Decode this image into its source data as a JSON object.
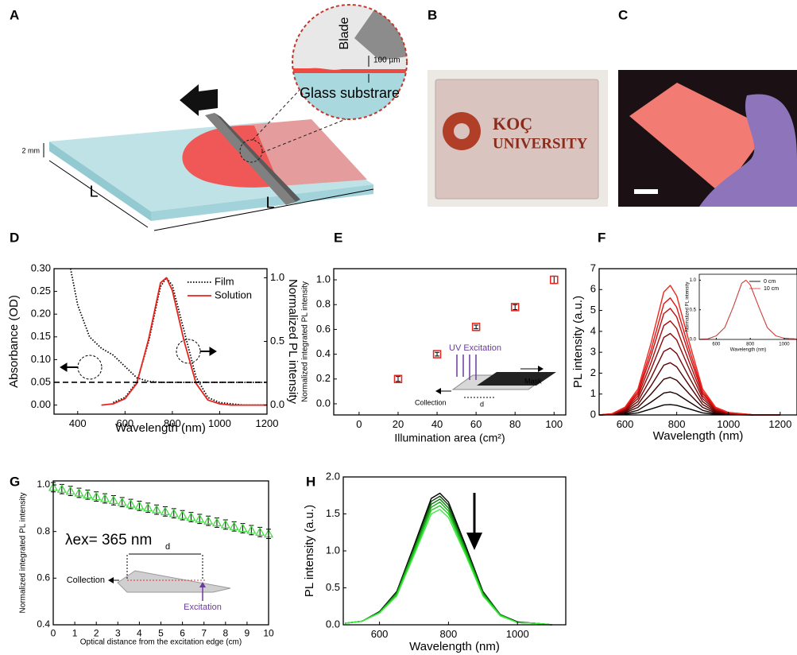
{
  "panel_labels": [
    "A",
    "B",
    "C",
    "D",
    "E",
    "F",
    "G",
    "H"
  ],
  "panel_a": {
    "blade": "Blade",
    "gap": "100 µm",
    "substrate": "Glass substrare",
    "thickness": "2 mm",
    "length_1": "L",
    "length_2": "L"
  },
  "panel_b": {
    "logo_line_1": "KOÇ",
    "logo_line_2": "UNIVERSITY"
  },
  "chart_data": [
    {
      "type": "line",
      "x": [
        370,
        400,
        450,
        500,
        550,
        600,
        650,
        700,
        750,
        775,
        800,
        850,
        900,
        950,
        1000,
        1050,
        1100,
        1150,
        1200
      ],
      "series": [
        {
          "name": "Film",
          "color": "#000000",
          "dash": "dotted",
          "axis": "y2",
          "values": [
            null,
            null,
            null,
            null,
            0.02,
            0.06,
            0.18,
            0.5,
            0.93,
            1.0,
            0.94,
            0.58,
            0.22,
            0.06,
            0.02,
            0.01,
            0,
            0,
            0
          ]
        },
        {
          "name": "Solution",
          "color": "#e8231c",
          "dash": "solid",
          "axis": "y2",
          "values": [
            null,
            null,
            null,
            0,
            0.01,
            0.05,
            0.17,
            0.52,
            0.96,
            1.0,
            0.9,
            0.5,
            0.17,
            0.04,
            0.01,
            0,
            0,
            0,
            0
          ]
        },
        {
          "color": "#000000",
          "dash": "dotted",
          "values": [
            0.3,
            0.22,
            0.15,
            0.125,
            0.11,
            0.085,
            0.06,
            0.052,
            0.05,
            0.05,
            0.05,
            0.05,
            0.05,
            0.05,
            0.05,
            0.05,
            0.05,
            0.05,
            0.05
          ]
        }
      ],
      "hline": 0.05,
      "xlim": [
        300,
        1200
      ],
      "ylim": [
        -0.02,
        0.3
      ],
      "y2lim": [
        -0.0714,
        1.0714
      ],
      "xticks": [
        400,
        600,
        800,
        1000,
        1200
      ],
      "yticks": [
        {
          "value": 0,
          "label": "0.00"
        },
        0.05,
        {
          "value": 0.1,
          "label": "0.10"
        },
        0.15,
        {
          "value": 0.2,
          "label": "0.20"
        },
        0.25,
        {
          "value": 0.3,
          "label": "0.30"
        }
      ],
      "y2ticks": [
        {
          "value": 0,
          "label": "0.0"
        },
        0.5,
        {
          "value": 1,
          "label": "1.0"
        }
      ],
      "xlabel": "Wavelength (nm)",
      "ylabel": "Absorbance (OD)",
      "y2label": "Normalized PL intensity",
      "legend": "upper right"
    },
    {
      "type": "scatter",
      "x": [
        20,
        40,
        60,
        80,
        100
      ],
      "values": [
        0.2,
        0.4,
        0.62,
        0.78,
        1.0
      ],
      "errors": [
        0.02,
        0.015,
        0.015,
        0.02,
        0.03
      ],
      "color": "#e8231c",
      "marker": "square",
      "xlim": [
        -13,
        106
      ],
      "ylim": [
        -0.09,
        1.09
      ],
      "xticks": [
        0,
        20,
        40,
        60,
        80,
        100
      ],
      "yticks": [
        {
          "value": 0,
          "label": "0.0"
        },
        0.2,
        0.4,
        0.6,
        0.8,
        {
          "value": 1,
          "label": "1.0"
        }
      ],
      "xlabel": "Illumination area (cm²)",
      "ylabel": "Normalized integrated PL intensity",
      "annotations": [
        "UV Excitation",
        "Mask",
        "Collection",
        "d"
      ]
    },
    {
      "type": "line",
      "x": [
        500,
        550,
        600,
        650,
        700,
        750,
        775,
        800,
        850,
        900,
        950,
        1000,
        1100,
        1200
      ],
      "series": [
        {
          "color": "#000000",
          "values": [
            0,
            0.01,
            0.03,
            0.1,
            0.28,
            0.48,
            0.5,
            0.46,
            0.28,
            0.1,
            0.03,
            0.01,
            0,
            0
          ]
        },
        {
          "color": "#1c0000",
          "values": [
            0,
            0.01,
            0.07,
            0.22,
            0.61,
            1.05,
            1.1,
            1.01,
            0.61,
            0.22,
            0.07,
            0.02,
            0,
            0
          ]
        },
        {
          "color": "#380202",
          "values": [
            0,
            0.02,
            0.11,
            0.36,
            0.99,
            1.71,
            1.8,
            1.66,
            0.99,
            0.36,
            0.11,
            0.04,
            0,
            0
          ]
        },
        {
          "color": "#550404",
          "values": [
            0,
            0.03,
            0.15,
            0.5,
            1.38,
            2.38,
            2.5,
            2.3,
            1.38,
            0.5,
            0.15,
            0.05,
            0,
            0
          ]
        },
        {
          "color": "#710606",
          "values": [
            0,
            0.03,
            0.19,
            0.64,
            1.76,
            3.04,
            3.2,
            2.94,
            1.76,
            0.64,
            0.19,
            0.06,
            0,
            0
          ]
        },
        {
          "color": "#8d0808",
          "values": [
            0,
            0.04,
            0.23,
            0.78,
            2.15,
            3.71,
            3.9,
            3.59,
            2.15,
            0.78,
            0.23,
            0.08,
            0,
            0
          ]
        },
        {
          "color": "#aa0a0a",
          "values": [
            0,
            0.05,
            0.27,
            0.9,
            2.48,
            4.28,
            4.5,
            4.14,
            2.48,
            0.9,
            0.27,
            0.09,
            0,
            0
          ]
        },
        {
          "color": "#c60e0e",
          "values": [
            0,
            0.05,
            0.31,
            1.02,
            2.81,
            4.85,
            5.1,
            4.69,
            2.81,
            1.02,
            0.31,
            0.1,
            0,
            0
          ]
        },
        {
          "color": "#e21414",
          "values": [
            0,
            0.06,
            0.34,
            1.12,
            3.08,
            5.32,
            5.6,
            5.15,
            3.08,
            1.12,
            0.34,
            0.11,
            0,
            0
          ]
        },
        {
          "color": "#f0281e",
          "values": [
            0,
            0.06,
            0.37,
            1.24,
            3.41,
            5.89,
            6.2,
            5.7,
            3.41,
            1.24,
            0.37,
            0.12,
            0,
            0
          ]
        }
      ],
      "xlim": [
        500,
        1265
      ],
      "ylim": [
        0,
        7
      ],
      "xticks": [
        600,
        800,
        1000,
        1200
      ],
      "yticks": [
        0,
        1,
        2,
        3,
        4,
        5,
        6,
        7
      ],
      "xlabel": "Wavelength (nm)",
      "ylabel": "PL intensity (a.u.)",
      "inset": {
        "type": "line",
        "x": [
          500,
          550,
          600,
          650,
          700,
          750,
          775,
          800,
          850,
          900,
          950,
          1000,
          1100
        ],
        "series": [
          {
            "name": "0 cm",
            "color": "#000000",
            "values": [
              0,
              0.01,
              0.06,
              0.2,
              0.55,
              0.95,
              1.0,
              0.92,
              0.55,
              0.2,
              0.06,
              0.02,
              0
            ]
          },
          {
            "name": "10 cm",
            "color": "#e8443c",
            "values": [
              0,
              0.01,
              0.06,
              0.2,
              0.55,
              0.95,
              1.0,
              0.92,
              0.55,
              0.2,
              0.06,
              0.02,
              0
            ]
          }
        ],
        "xlim": [
          500,
          1075
        ],
        "ylim": [
          0,
          1.1
        ],
        "xticks": [
          600,
          800,
          1000
        ],
        "yticks": [
          {
            "value": 0,
            "label": "0.0"
          },
          0.5,
          {
            "value": 1,
            "label": "1.0"
          }
        ],
        "xlabel": "Wavelength (nm)",
        "ylabel": "Normalized PL intensity",
        "legend": "upper right"
      }
    },
    {
      "type": "scatter",
      "x": [
        0,
        0.4,
        0.8,
        1.2,
        1.6,
        2,
        2.4,
        2.8,
        3.2,
        3.6,
        4,
        4.4,
        4.8,
        5.2,
        5.6,
        6,
        6.4,
        6.8,
        7.2,
        7.6,
        8,
        8.4,
        8.8,
        9.2,
        9.6,
        10
      ],
      "values": [
        0.99,
        0.982,
        0.974,
        0.966,
        0.958,
        0.95,
        0.942,
        0.934,
        0.926,
        0.918,
        0.91,
        0.902,
        0.894,
        0.886,
        0.878,
        0.87,
        0.862,
        0.854,
        0.846,
        0.838,
        0.83,
        0.822,
        0.814,
        0.806,
        0.798,
        0.79
      ],
      "errors": [
        0.02,
        0.02,
        0.02,
        0.02,
        0.02,
        0.02,
        0.02,
        0.02,
        0.02,
        0.02,
        0.02,
        0.02,
        0.02,
        0.02,
        0.02,
        0.02,
        0.02,
        0.02,
        0.02,
        0.02,
        0.02,
        0.02,
        0.02,
        0.02,
        0.02,
        0.02
      ],
      "color": "#44dd44",
      "marker": "triangle",
      "xlim": [
        0,
        10
      ],
      "ylim": [
        0.4,
        1.017
      ],
      "xticks": [
        0,
        1,
        2,
        3,
        4,
        5,
        6,
        7,
        8,
        9,
        10
      ],
      "yticks": [
        0.4,
        0.6,
        0.8,
        {
          "value": 1,
          "label": "1.0"
        }
      ],
      "xlabel": "Optical distance from the excitation edge (cm)",
      "ylabel": "Normalized integrated PL intensity",
      "annotations": [
        "λex= 365 nm",
        "Collection",
        "d",
        "Excitation"
      ]
    },
    {
      "type": "line",
      "x": [
        500,
        550,
        600,
        650,
        700,
        750,
        775,
        800,
        850,
        900,
        950,
        1000,
        1050,
        1100
      ],
      "series": [
        {
          "color": "#000000",
          "values": [
            0.02,
            0.05,
            0.18,
            0.45,
            1.07,
            1.71,
            1.78,
            1.66,
            1.07,
            0.45,
            0.14,
            0.04,
            0.02,
            0
          ]
        },
        {
          "color": "#0b3d0b",
          "values": [
            0.02,
            0.05,
            0.17,
            0.44,
            1.04,
            1.67,
            1.74,
            1.62,
            1.04,
            0.44,
            0.14,
            0.03,
            0.02,
            0
          ]
        },
        {
          "color": "#127a12",
          "values": [
            0.02,
            0.05,
            0.17,
            0.43,
            1.02,
            1.63,
            1.7,
            1.58,
            1.02,
            0.43,
            0.14,
            0.03,
            0.02,
            0
          ]
        },
        {
          "color": "#1aa81a",
          "values": [
            0.02,
            0.05,
            0.17,
            0.42,
            1.0,
            1.59,
            1.66,
            1.54,
            1.0,
            0.42,
            0.13,
            0.03,
            0.02,
            0
          ]
        },
        {
          "color": "#22cc22",
          "values": [
            0.02,
            0.05,
            0.16,
            0.4,
            0.97,
            1.55,
            1.61,
            1.5,
            0.97,
            0.4,
            0.13,
            0.03,
            0.02,
            0
          ]
        },
        {
          "color": "#3aee3a",
          "values": [
            0.02,
            0.05,
            0.16,
            0.39,
            0.94,
            1.5,
            1.56,
            1.45,
            0.94,
            0.39,
            0.12,
            0.03,
            0.02,
            0
          ]
        }
      ],
      "xlim": [
        495,
        1140
      ],
      "ylim": [
        0,
        2
      ],
      "xticks": [
        600,
        800,
        1000
      ],
      "yticks": [
        {
          "value": 0,
          "label": "0.0"
        },
        0.5,
        {
          "value": 1,
          "label": "1.0"
        },
        1.5,
        {
          "value": 2,
          "label": "2.0"
        }
      ],
      "xlabel": "Wavelength (nm)",
      "ylabel": "PL intensity (a.u.)"
    }
  ]
}
